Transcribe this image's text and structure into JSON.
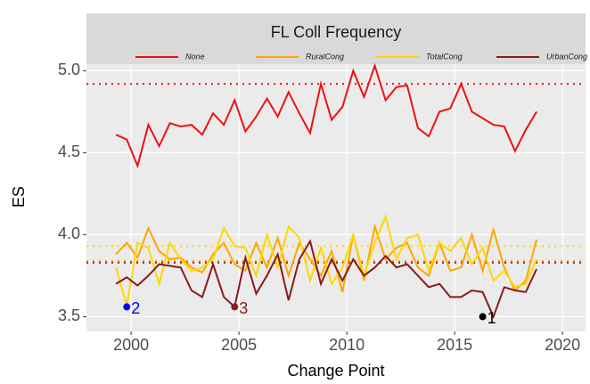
{
  "chart_data": {
    "type": "line",
    "title": "FL Coll Frequency",
    "xlabel": "Change Point",
    "ylabel": "ES",
    "x": [
      1999.3,
      1999.8,
      2000.3,
      2000.8,
      2001.3,
      2001.8,
      2002.3,
      2002.8,
      2003.3,
      2003.8,
      2004.3,
      2004.8,
      2005.3,
      2005.8,
      2006.3,
      2006.8,
      2007.3,
      2007.8,
      2008.3,
      2008.8,
      2009.3,
      2009.8,
      2010.3,
      2010.8,
      2011.3,
      2011.8,
      2012.3,
      2012.8,
      2013.3,
      2013.8,
      2014.3,
      2014.8,
      2015.3,
      2015.8,
      2016.3,
      2016.8,
      2017.3,
      2017.8,
      2018.3,
      2018.8
    ],
    "series": [
      {
        "name": "None",
        "color": "#ee1111",
        "hline": 4.92,
        "values": [
          4.61,
          4.58,
          4.42,
          4.67,
          4.54,
          4.68,
          4.66,
          4.67,
          4.61,
          4.74,
          4.67,
          4.82,
          4.63,
          4.72,
          4.83,
          4.72,
          4.87,
          4.74,
          4.62,
          4.92,
          4.7,
          4.78,
          5.0,
          4.84,
          5.03,
          4.82,
          4.9,
          4.91,
          4.65,
          4.6,
          4.75,
          4.77,
          4.92,
          4.75,
          4.71,
          4.67,
          4.66,
          4.51,
          4.64,
          4.75
        ]
      },
      {
        "name": "RuralCong",
        "color": "#ffa500",
        "hline": 3.84,
        "values": [
          3.88,
          3.95,
          3.86,
          4.04,
          3.9,
          3.85,
          3.86,
          3.8,
          3.77,
          3.88,
          3.95,
          3.82,
          3.78,
          3.95,
          3.8,
          3.98,
          3.75,
          3.95,
          3.85,
          3.75,
          3.9,
          3.65,
          4.0,
          3.72,
          4.05,
          3.85,
          3.92,
          3.95,
          3.8,
          3.75,
          3.95,
          3.78,
          3.8,
          4.0,
          3.78,
          4.03,
          3.8,
          3.66,
          3.72,
          3.97
        ]
      },
      {
        "name": "TotalCong",
        "color": "#ffd700",
        "hline": 3.93,
        "values": [
          3.8,
          3.57,
          3.95,
          3.92,
          3.7,
          3.95,
          3.85,
          3.78,
          3.8,
          3.85,
          4.04,
          3.93,
          3.92,
          3.75,
          4.0,
          3.8,
          4.05,
          3.98,
          3.72,
          3.92,
          3.7,
          3.8,
          4.0,
          3.75,
          3.95,
          4.11,
          3.85,
          3.98,
          4.0,
          3.78,
          3.95,
          3.9,
          3.98,
          3.82,
          3.92,
          3.72,
          3.78,
          3.68,
          3.7,
          3.85
        ]
      },
      {
        "name": "UrbanCong",
        "color": "#8b1a1a",
        "hline": 3.83,
        "values": [
          3.7,
          3.74,
          3.69,
          3.75,
          3.82,
          3.81,
          3.8,
          3.66,
          3.62,
          3.82,
          3.62,
          3.56,
          3.86,
          3.64,
          3.75,
          3.88,
          3.6,
          3.85,
          3.96,
          3.7,
          3.85,
          3.72,
          3.85,
          3.75,
          3.8,
          3.87,
          3.8,
          3.82,
          3.75,
          3.68,
          3.7,
          3.62,
          3.62,
          3.66,
          3.65,
          3.5,
          3.68,
          3.66,
          3.65,
          3.79
        ]
      }
    ],
    "annotations": [
      {
        "label": "1",
        "x": 2016.3,
        "y": 3.5,
        "color": "#000000"
      },
      {
        "label": "2",
        "x": 1999.8,
        "y": 3.56,
        "color": "#0000ee"
      },
      {
        "label": "3",
        "x": 2004.8,
        "y": 3.56,
        "color": "#8b1a1a"
      }
    ],
    "xlim": [
      1997.93,
      2021.07
    ],
    "xticks": [
      2000,
      2005,
      2010,
      2015,
      2020
    ],
    "ylim": [
      3.41,
      5.04
    ],
    "yticks": [
      3.5,
      {
        "value": 4,
        "label": "4.0"
      },
      4.5,
      {
        "value": 5,
        "label": "5.0"
      }
    ],
    "grid": true
  }
}
